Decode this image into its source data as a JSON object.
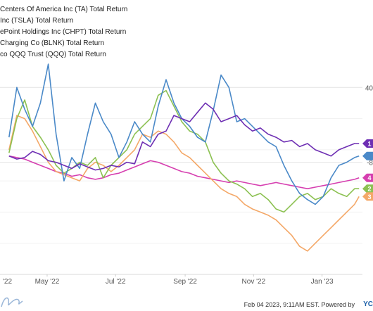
{
  "chart_data": {
    "type": "line",
    "title": "",
    "xlabel": "",
    "ylabel": "",
    "x_tick_labels": [
      "'22",
      "May '22",
      "Jul '22",
      "Sep '22",
      "Nov '22",
      "Jan '23"
    ],
    "y_tick_labels": [
      "40",
      "-8"
    ],
    "x": [
      "2022-03-28",
      "2022-04-04",
      "2022-04-11",
      "2022-04-18",
      "2022-04-25",
      "2022-05-02",
      "2022-05-09",
      "2022-05-16",
      "2022-05-23",
      "2022-05-30",
      "2022-06-06",
      "2022-06-13",
      "2022-06-20",
      "2022-06-27",
      "2022-07-04",
      "2022-07-11",
      "2022-07-18",
      "2022-07-25",
      "2022-08-01",
      "2022-08-08",
      "2022-08-15",
      "2022-08-22",
      "2022-08-29",
      "2022-09-05",
      "2022-09-12",
      "2022-09-19",
      "2022-09-26",
      "2022-10-03",
      "2022-10-10",
      "2022-10-17",
      "2022-10-24",
      "2022-10-31",
      "2022-11-07",
      "2022-11-14",
      "2022-11-21",
      "2022-11-28",
      "2022-12-05",
      "2022-12-12",
      "2022-12-19",
      "2022-12-26",
      "2023-01-02",
      "2023-01-09",
      "2023-01-16",
      "2023-01-23",
      "2023-01-30",
      "2023-02-03"
    ],
    "series": [
      {
        "name": "...Centers Of America Inc (TA) Total Return",
        "badge": "1",
        "color": "#6e2fb3",
        "values": [
          -4,
          -6,
          -5,
          -1,
          -3,
          -7,
          -8,
          -10,
          -12,
          -9,
          -11,
          -13,
          -12,
          -10,
          -11,
          -8,
          -9,
          5,
          2,
          10,
          12,
          22,
          20,
          18,
          24,
          30,
          26,
          18,
          20,
          22,
          16,
          12,
          14,
          10,
          8,
          5,
          6,
          2,
          4,
          0,
          -2,
          -4,
          0,
          2,
          4,
          4
        ]
      },
      {
        "name": "...Inc (TSLA) Total Return",
        "badge": "",
        "color": "#4a89c8",
        "values": [
          8,
          40,
          26,
          15,
          30,
          55,
          10,
          -20,
          -5,
          -12,
          10,
          30,
          18,
          10,
          -5,
          5,
          18,
          10,
          5,
          28,
          45,
          30,
          20,
          15,
          8,
          5,
          25,
          48,
          40,
          18,
          20,
          15,
          10,
          5,
          2,
          -10,
          -20,
          -28,
          -32,
          -35,
          -30,
          -18,
          -10,
          -8,
          -5,
          -4
        ]
      },
      {
        "name": "...ePoint Holdings Inc (CHPT) Total Return",
        "badge": "2",
        "color": "#8cc152",
        "values": [
          -2,
          20,
          32,
          15,
          8,
          0,
          -10,
          -15,
          -12,
          -8,
          -10,
          -5,
          -18,
          -10,
          -5,
          0,
          10,
          15,
          20,
          35,
          38,
          28,
          18,
          12,
          10,
          5,
          -8,
          -15,
          -20,
          -22,
          -25,
          -30,
          -28,
          -32,
          -38,
          -40,
          -35,
          -30,
          -28,
          -32,
          -30,
          -25,
          -28,
          -30,
          -25,
          -25
        ]
      },
      {
        "name": "...Charging Co (BLNK) Total Return",
        "badge": "3",
        "color": "#f4a868",
        "values": [
          0,
          22,
          20,
          12,
          2,
          -8,
          -14,
          -16,
          -18,
          -20,
          -12,
          -8,
          -10,
          -14,
          -10,
          -5,
          0,
          10,
          8,
          12,
          10,
          5,
          -2,
          -5,
          -10,
          -15,
          -20,
          -25,
          -28,
          -30,
          -35,
          -38,
          -40,
          -42,
          -45,
          -50,
          -55,
          -62,
          -65,
          -60,
          -55,
          -50,
          -45,
          -40,
          -35,
          -30
        ]
      },
      {
        "name": "...co QQQ Trust (QQQ) Total Return",
        "badge": "4",
        "color": "#d63fb0",
        "values": [
          -4,
          -5,
          -6,
          -8,
          -10,
          -12,
          -14,
          -15,
          -17,
          -16,
          -18,
          -19,
          -18,
          -16,
          -15,
          -13,
          -11,
          -9,
          -7,
          -8,
          -10,
          -12,
          -14,
          -15,
          -17,
          -18,
          -19,
          -20,
          -21,
          -20,
          -21,
          -22,
          -23,
          -22,
          -21,
          -22,
          -23,
          -24,
          -25,
          -24,
          -23,
          -22,
          -21,
          -20,
          -19,
          -18
        ]
      }
    ]
  },
  "footer": {
    "timestamp": "Feb 04 2023, 9:11AM EST. Powered by",
    "brand": "YC"
  }
}
